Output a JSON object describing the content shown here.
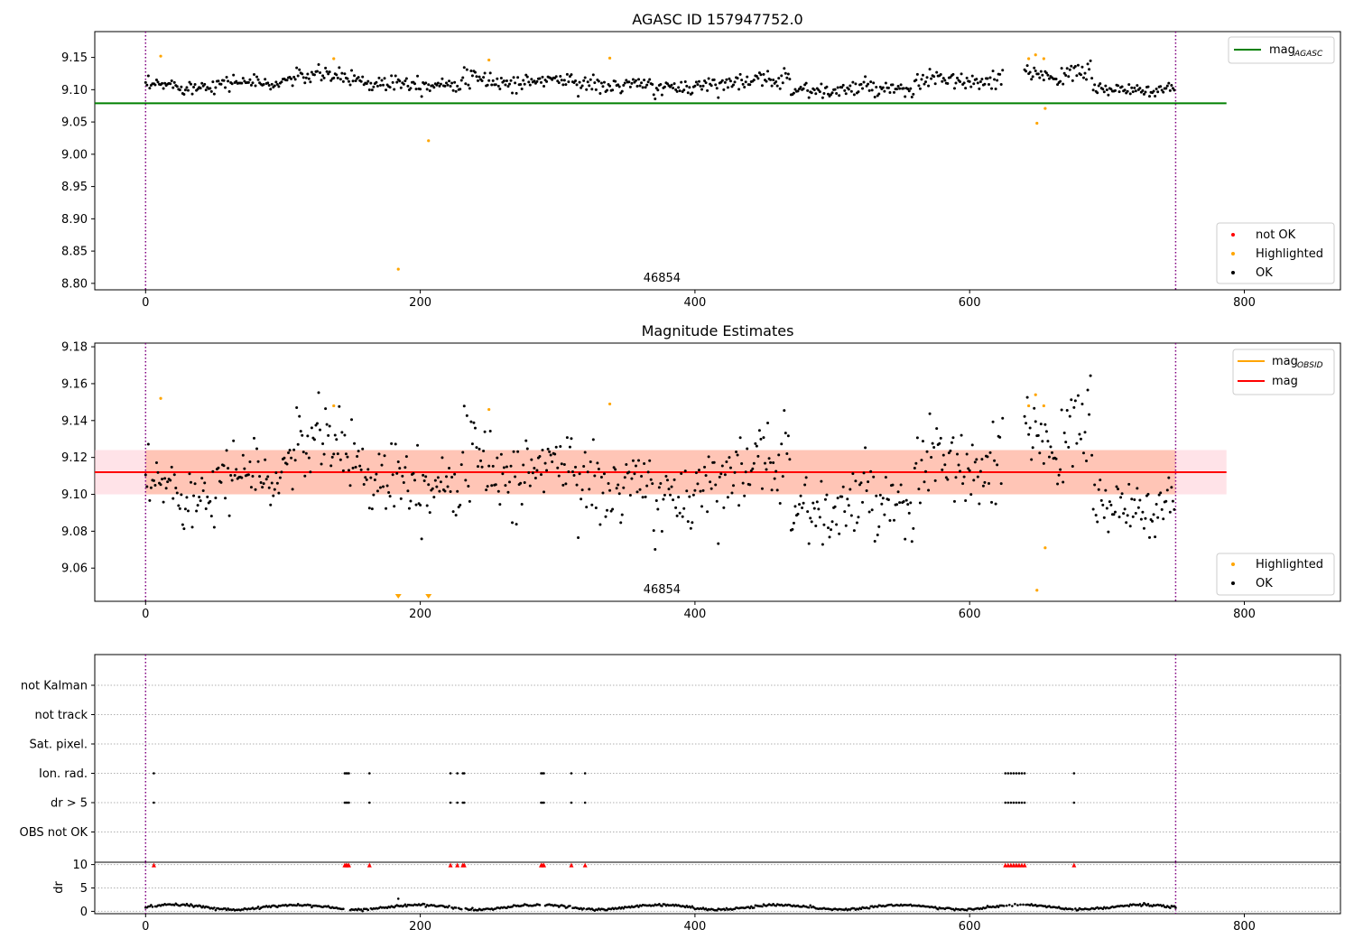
{
  "figure": {
    "title": "AGASC ID 157947752.0",
    "panel2_title": "Magnitude Estimates",
    "obsid_label": "46854"
  },
  "colors": {
    "ok": "#000000",
    "highlighted": "#ffa500",
    "not_ok": "#ff0000",
    "mag_agasc": "#008000",
    "mag_obsid": "#ffa500",
    "mag": "#ff0000",
    "band_outer": "#ffc0cb",
    "band_inner": "#ffa07a",
    "obs_boundary": "#800080",
    "grid": "#b0b0b0"
  },
  "chart_data": [
    {
      "type": "scatter",
      "title": "AGASC ID 157947752.0",
      "xlabel": "",
      "ylabel": "",
      "xlim": [
        -37,
        870
      ],
      "ylim": [
        8.79,
        9.19
      ],
      "xticks": [
        "0",
        "200",
        "400",
        "600",
        "800"
      ],
      "yticks": [
        "8.80",
        "8.85",
        "8.90",
        "8.95",
        "9.00",
        "9.05",
        "9.10",
        "9.15"
      ],
      "lines": [
        {
          "name": "mag_AGASC",
          "y": 9.079,
          "x_range": [
            -37,
            787
          ]
        }
      ],
      "obs_boundaries": [
        0,
        750
      ],
      "ok_series": {
        "name": "OK",
        "x_range": [
          0,
          750
        ],
        "segments": [
          {
            "x": [
              0,
              40
            ],
            "mean": 9.105,
            "spread": 0.008
          },
          {
            "x": [
              40,
              100
            ],
            "mean": 9.11,
            "spread": 0.008
          },
          {
            "x": [
              100,
              160
            ],
            "mean": 9.12,
            "spread": 0.009
          },
          {
            "x": [
              160,
              210
            ],
            "mean": 9.11,
            "spread": 0.01
          },
          {
            "x": [
              210,
              330
            ],
            "mean": 9.113,
            "spread": 0.01
          },
          {
            "x": [
              330,
              420
            ],
            "mean": 9.105,
            "spread": 0.009
          },
          {
            "x": [
              420,
              470
            ],
            "mean": 9.115,
            "spread": 0.01
          },
          {
            "x": [
              470,
              560
            ],
            "mean": 9.1,
            "spread": 0.009
          },
          {
            "x": [
              560,
              625
            ],
            "mean": 9.113,
            "spread": 0.011
          },
          {
            "x": [
              640,
              690
            ],
            "mean": 9.125,
            "spread": 0.01
          },
          {
            "x": [
              690,
              750
            ],
            "mean": 9.1,
            "spread": 0.008
          }
        ]
      },
      "highlighted": {
        "name": "Highlighted",
        "x": [
          11,
          137,
          184,
          206,
          250,
          338,
          643,
          648,
          649,
          654,
          655
        ],
        "y": [
          9.152,
          9.148,
          8.822,
          9.021,
          9.146,
          9.149,
          9.148,
          9.154,
          9.048,
          9.148,
          9.071
        ]
      },
      "legend_lines": [
        "mag_AGASC"
      ],
      "legend_points": [
        "not OK",
        "Highlighted",
        "OK"
      ],
      "annotation": "46854"
    },
    {
      "type": "scatter",
      "title": "Magnitude Estimates",
      "xlabel": "",
      "ylabel": "",
      "xlim": [
        -37,
        870
      ],
      "ylim": [
        9.042,
        9.182
      ],
      "xticks": [
        "0",
        "200",
        "400",
        "600",
        "800"
      ],
      "yticks": [
        "9.06",
        "9.08",
        "9.10",
        "9.12",
        "9.14",
        "9.16",
        "9.18"
      ],
      "lines": [
        {
          "name": "mag_OBSID",
          "y": 9.112,
          "x_range": [
            0,
            750
          ]
        },
        {
          "name": "mag",
          "y": 9.112,
          "x_range": [
            -37,
            787
          ]
        }
      ],
      "bands": [
        {
          "name": "mag band",
          "y": [
            9.1,
            9.124
          ],
          "x_range": [
            -37,
            787
          ],
          "color": "band_outer"
        },
        {
          "name": "mag_OBSID band",
          "y": [
            9.1,
            9.124
          ],
          "x_range": [
            0,
            750
          ],
          "color": "band_inner"
        }
      ],
      "obs_boundaries": [
        0,
        750
      ],
      "highlighted": {
        "name": "Highlighted",
        "x": [
          11,
          137,
          250,
          338,
          643,
          648,
          649,
          654,
          655
        ],
        "y": [
          9.152,
          9.148,
          9.146,
          9.149,
          9.148,
          9.154,
          9.048,
          9.148,
          9.071
        ]
      },
      "below_range_markers_x": [
        184,
        206
      ],
      "legend_lines": [
        "mag_OBSID",
        "mag"
      ],
      "legend_points": [
        "Highlighted",
        "OK"
      ],
      "annotation": "46854"
    },
    {
      "type": "scatter",
      "title": "",
      "xlim": [
        -37,
        870
      ],
      "xticks": [
        "0",
        "200",
        "400",
        "600",
        "800"
      ],
      "flag_labels": [
        "not Kalman",
        "not track",
        "Sat. pixel.",
        "Ion. rad.",
        "dr > 5",
        "OBS not OK"
      ],
      "flagged_x": [
        6,
        145,
        146,
        147,
        148,
        163,
        222,
        227,
        231,
        232,
        288,
        289,
        290,
        310,
        320,
        626,
        628,
        630,
        632,
        634,
        636,
        638,
        640,
        676
      ],
      "flagged_rows": [
        "Ion. rad.",
        "dr > 5"
      ],
      "dr_ylabel": "dr",
      "dr_yticks": [
        "0",
        "5",
        "10"
      ],
      "dr_ylim": [
        -0.5,
        10.5
      ],
      "dr_ok": {
        "name": "dr",
        "x_range": [
          0,
          750
        ],
        "mean": 0.9,
        "amplitude": 0.5,
        "outlier": {
          "x": 184,
          "y": 2.7
        }
      },
      "dr_flagged_value": 10
    }
  ]
}
